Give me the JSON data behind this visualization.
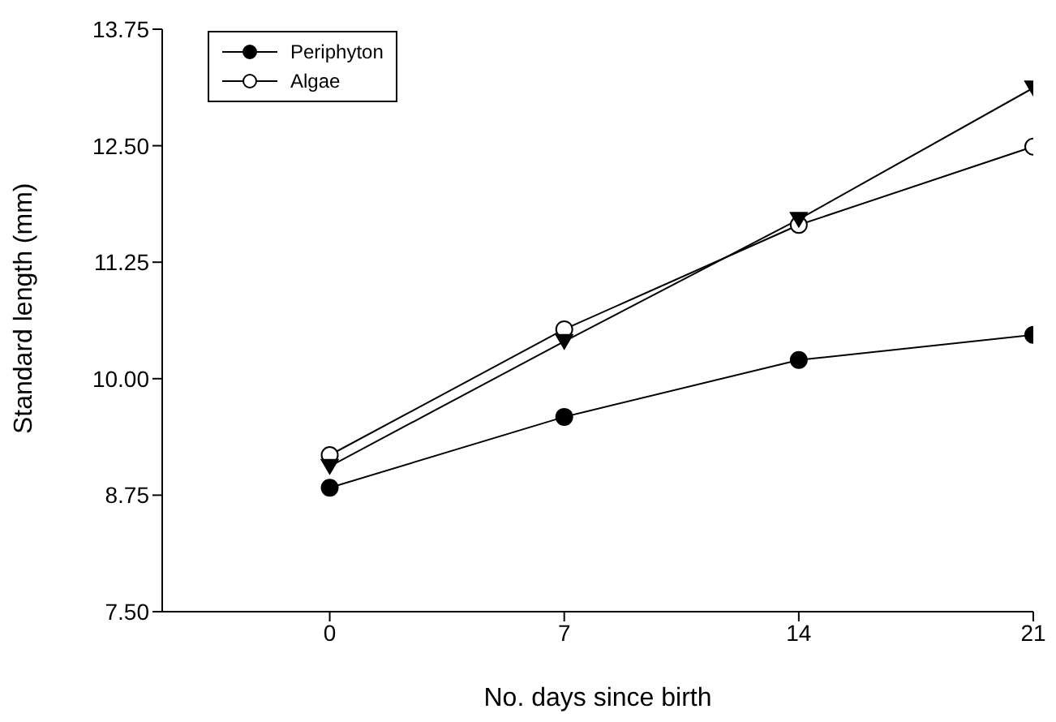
{
  "chart_data": {
    "type": "line",
    "xlabel": "No. days since birth",
    "ylabel": "Standard length (mm)",
    "x": [
      0,
      7,
      14,
      21
    ],
    "series": [
      {
        "name": "Periphyton",
        "color": "#000000",
        "marker": "circle",
        "values": [
          8.83,
          9.59,
          10.2,
          10.47
        ]
      },
      {
        "name": "Algae",
        "color": "#000000",
        "marker": "open_circle",
        "values": [
          9.18,
          10.53,
          11.65,
          12.49
        ]
      },
      {
        "color": "#000000",
        "marker": "triangle_down",
        "values": [
          9.06,
          10.4,
          11.71,
          13.12
        ]
      }
    ],
    "xlim": [
      -5,
      21
    ],
    "xticks": [
      0,
      7,
      14,
      21
    ],
    "ylim": [
      7.5,
      13.75
    ],
    "yticks": [
      {
        "value": 7.5,
        "label": "7.50"
      },
      8.75,
      {
        "value": 10,
        "label": "10.00"
      },
      11.25,
      {
        "value": 12.5,
        "label": "12.50"
      },
      13.75
    ],
    "grid": false,
    "legend": "top left",
    "line_style": "solid"
  }
}
